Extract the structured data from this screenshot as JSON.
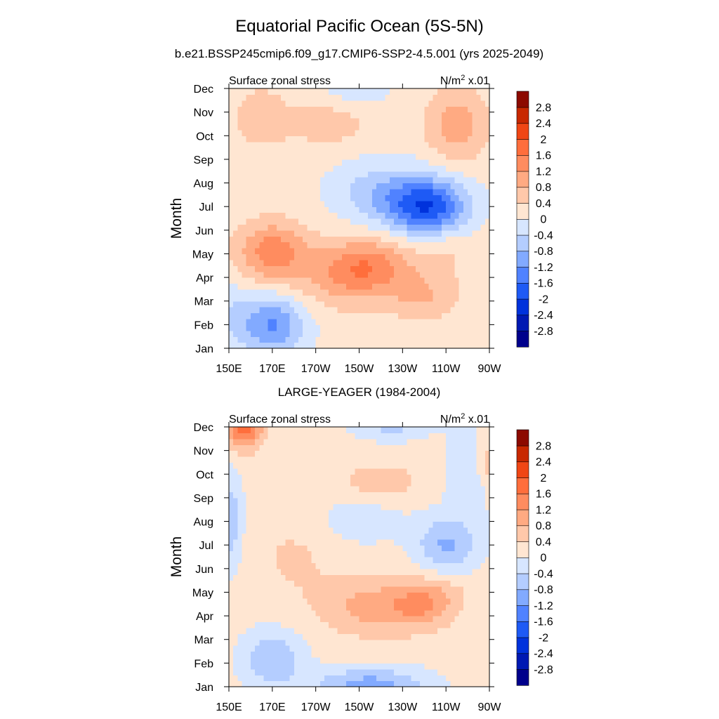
{
  "title": "Equatorial Pacific Ocean (5S-5N)",
  "colorbar": {
    "colors": [
      "#00008c",
      "#0019b3",
      "#0032dc",
      "#1e5af5",
      "#5082ff",
      "#82aaff",
      "#b4cdff",
      "#d7e6ff",
      "#ffe6d2",
      "#ffc8aa",
      "#ffaa82",
      "#ff8c5f",
      "#ff6e3c",
      "#f04614",
      "#c82800",
      "#8c0a00"
    ],
    "labels": [
      "-2.8",
      "-2.4",
      "-2",
      "-1.6",
      "-1.2",
      "-0.8",
      "-0.4",
      "0",
      "0.4",
      "0.8",
      "1.2",
      "1.6",
      "2",
      "2.4",
      "2.8"
    ]
  },
  "chart_data": [
    {
      "type": "heatmap",
      "title": "b.e21.BSSP245cmip6.f09_g17.CMIP6-SSP2-4.5.001 (yrs 2025-2049)",
      "left_string": "Surface zonal stress",
      "units_main": "N/m",
      "units_sup": "2",
      "units_scale": "x.01",
      "xlabel": "",
      "ylabel": "Month",
      "x_ticks": [
        "150E",
        "170E",
        "170W",
        "150W",
        "130W",
        "110W",
        "90W"
      ],
      "y_ticks": [
        "Jan",
        "Feb",
        "Mar",
        "Apr",
        "May",
        "Jun",
        "Jul",
        "Aug",
        "Sep",
        "Oct",
        "Nov",
        "Dec"
      ],
      "x_lon": [
        150,
        155,
        160,
        165,
        170,
        175,
        180,
        185,
        190,
        195,
        200,
        205,
        210,
        215,
        220,
        225,
        230,
        235,
        240,
        245,
        250,
        255,
        260,
        265,
        270
      ],
      "levels": [
        -2.8,
        -2.4,
        -2,
        -1.6,
        -1.2,
        -0.8,
        -0.4,
        0,
        0.4,
        0.8,
        1.2,
        1.6,
        2,
        2.4,
        2.8
      ],
      "blobs": [
        {
          "x": 170,
          "y": 5.1,
          "sx": 16,
          "sy": 1.25,
          "a": 1.3
        },
        {
          "x": 215,
          "y": 4.6,
          "sx": 20,
          "sy": 1.1,
          "a": 0.9
        },
        {
          "x": 205,
          "y": 4.0,
          "sx": 24,
          "sy": 1.3,
          "a": 0.8
        },
        {
          "x": 240,
          "y": 3.2,
          "sx": 16,
          "sy": 1.0,
          "a": 0.6
        },
        {
          "x": 170,
          "y": 2.0,
          "sx": 15,
          "sy": 1.3,
          "a": -1.4
        },
        {
          "x": 150,
          "y": 2.5,
          "sx": 10,
          "sy": 1.5,
          "a": -0.4
        },
        {
          "x": 242,
          "y": 7.0,
          "sx": 18,
          "sy": 1.2,
          "a": -2.0
        },
        {
          "x": 220,
          "y": 7.6,
          "sx": 22,
          "sy": 1.3,
          "a": -0.8
        },
        {
          "x": 195,
          "y": 10.5,
          "sx": 18,
          "sy": 0.9,
          "a": 0.5
        },
        {
          "x": 255,
          "y": 10.5,
          "sx": 14,
          "sy": 1.5,
          "a": 0.9
        },
        {
          "x": 165,
          "y": 10.8,
          "sx": 12,
          "sy": 1.2,
          "a": 0.6
        },
        {
          "x": 210,
          "y": 12.2,
          "sx": 15,
          "sy": 0.8,
          "a": -0.5
        },
        {
          "x": 250,
          "y": 5.2,
          "sx": 14,
          "sy": 1.2,
          "a": 0.3
        }
      ]
    },
    {
      "type": "heatmap",
      "title": "LARGE-YEAGER (1984-2004)",
      "left_string": "Surface zonal stress",
      "units_main": "N/m",
      "units_sup": "2",
      "units_scale": "x.01",
      "xlabel": "",
      "ylabel": "Month",
      "x_ticks": [
        "150E",
        "170E",
        "170W",
        "150W",
        "130W",
        "110W",
        "90W"
      ],
      "y_ticks": [
        "Jan",
        "Feb",
        "Mar",
        "Apr",
        "May",
        "Jun",
        "Jul",
        "Aug",
        "Sep",
        "Oct",
        "Nov",
        "Dec"
      ],
      "x_lon": [
        150,
        155,
        160,
        165,
        170,
        175,
        180,
        185,
        190,
        195,
        200,
        205,
        210,
        215,
        220,
        225,
        230,
        235,
        240,
        245,
        250,
        255,
        260,
        265,
        270
      ],
      "levels": [
        -2.8,
        -2.4,
        -2,
        -1.6,
        -1.2,
        -0.8,
        -0.4,
        0,
        0.4,
        0.8,
        1.2,
        1.6,
        2,
        2.4,
        2.8
      ],
      "blobs": [
        {
          "x": 238,
          "y": 4.5,
          "sx": 14,
          "sy": 1.0,
          "a": 0.9
        },
        {
          "x": 215,
          "y": 4.4,
          "sx": 22,
          "sy": 1.2,
          "a": 0.8
        },
        {
          "x": 250,
          "y": 5.0,
          "sx": 12,
          "sy": 1.0,
          "a": 0.3
        },
        {
          "x": 170,
          "y": 2.2,
          "sx": 14,
          "sy": 1.2,
          "a": -0.9
        },
        {
          "x": 215,
          "y": 1.0,
          "sx": 26,
          "sy": 0.8,
          "a": -1.2
        },
        {
          "x": 150,
          "y": 8.0,
          "sx": 6,
          "sy": 2.0,
          "a": -0.9
        },
        {
          "x": 250,
          "y": 7.0,
          "sx": 14,
          "sy": 1.2,
          "a": -1.0
        },
        {
          "x": 210,
          "y": 8.0,
          "sx": 20,
          "sy": 1.0,
          "a": -0.4
        },
        {
          "x": 220,
          "y": 9.7,
          "sx": 16,
          "sy": 0.7,
          "a": 0.6
        },
        {
          "x": 157,
          "y": 12.2,
          "sx": 8,
          "sy": 1.0,
          "a": 2.0
        },
        {
          "x": 225,
          "y": 12.4,
          "sx": 18,
          "sy": 0.8,
          "a": -0.9
        },
        {
          "x": 260,
          "y": 10.0,
          "sx": 10,
          "sy": 2.0,
          "a": -0.5
        },
        {
          "x": 270,
          "y": 10.5,
          "sx": 6,
          "sy": 1.0,
          "a": 0.6
        },
        {
          "x": 180,
          "y": 6.5,
          "sx": 20,
          "sy": 2.0,
          "a": 0.3
        }
      ]
    }
  ]
}
